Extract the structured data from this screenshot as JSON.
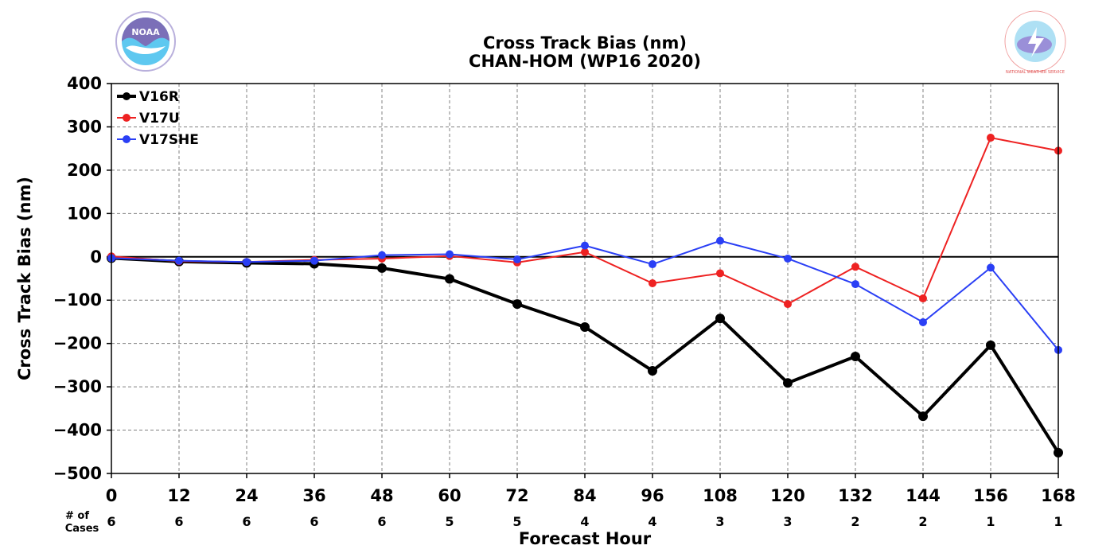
{
  "logos": {
    "left_text": "NOAA",
    "right_text": "NATIONAL WEATHER SERVICE"
  },
  "chart_data": {
    "type": "line",
    "title": "Cross Track Bias (nm)",
    "subtitle": "CHAN-HOM (WP16 2020)",
    "xlabel": "Forecast Hour",
    "ylabel": "Cross Track Bias (nm)",
    "xlim": [
      0,
      168
    ],
    "ylim": [
      -500,
      400
    ],
    "grid": true,
    "legend_position": "top-left",
    "x": [
      0,
      12,
      24,
      36,
      48,
      60,
      72,
      84,
      96,
      108,
      120,
      132,
      144,
      156,
      168
    ],
    "xticks": [
      "0",
      "12",
      "24",
      "36",
      "48",
      "60",
      "72",
      "84",
      "96",
      "108",
      "120",
      "132",
      "144",
      "156",
      "168"
    ],
    "yticks": [
      400,
      300,
      200,
      100,
      0,
      -100,
      -200,
      -300,
      -400,
      -500
    ],
    "ytick_labels": [
      "400",
      "300",
      "200",
      "100",
      "0",
      "−100",
      "−200",
      "−300",
      "−400",
      "−500"
    ],
    "cases_label_line1": "# of",
    "cases_label_line2": "Cases",
    "cases": [
      "6",
      "6",
      "6",
      "6",
      "6",
      "5",
      "5",
      "4",
      "4",
      "3",
      "3",
      "2",
      "2",
      "1",
      "1"
    ],
    "series": [
      {
        "name": "V16R",
        "color": "#000000",
        "values": [
          -3,
          -11,
          -14,
          -16,
          -26,
          -51,
          -109,
          -162,
          -263,
          -142,
          -291,
          -230,
          -368,
          -204,
          -452
        ]
      },
      {
        "name": "V17U",
        "color": "#ee2222",
        "values": [
          1,
          -10,
          -12,
          -7,
          -4,
          2,
          -13,
          11,
          -61,
          -38,
          -109,
          -23,
          -96,
          275,
          245
        ]
      },
      {
        "name": "V17SHE",
        "color": "#2a3ff5",
        "values": [
          -3,
          -9,
          -12,
          -9,
          4,
          6,
          -6,
          26,
          -17,
          37,
          -4,
          -63,
          -151,
          -25,
          -215
        ]
      }
    ]
  }
}
